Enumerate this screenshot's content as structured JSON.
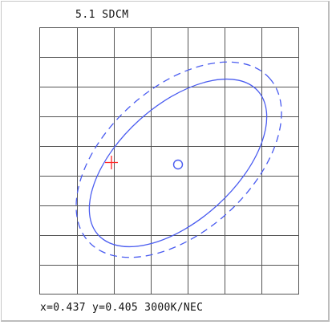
{
  "panel": {
    "title": "5.1 SDCM",
    "readout": {
      "x_label": "x=",
      "x_value": "0.437",
      "y_label": "y=",
      "y_value": "0.405",
      "reference": "3000K/NEC"
    }
  },
  "colors": {
    "grid": "#555555",
    "ellipse": "#4a5cf0",
    "center_marker": "#4a5cf0",
    "measurement_marker": "#ff2a2a",
    "text": "#111111"
  },
  "icons": {
    "center_marker": "circle-marker-icon",
    "measurement_marker": "crosshair-marker-icon"
  }
}
